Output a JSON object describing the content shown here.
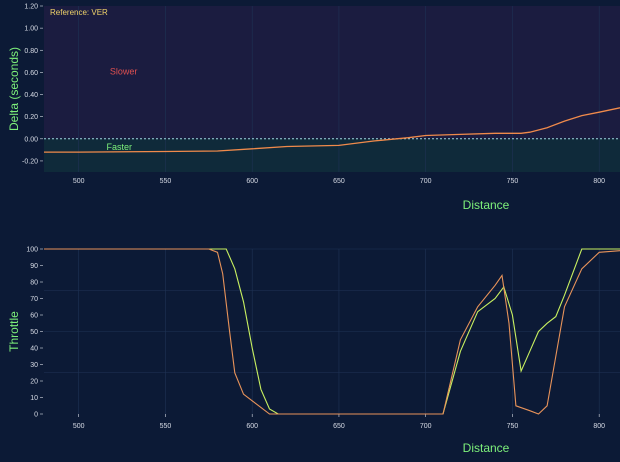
{
  "colors": {
    "background": "#0c1a36",
    "delta_slower_bg": "#1b1c40",
    "delta_faster_bg": "#0f2a3a",
    "grid": "#1f3355",
    "text": "#d8dce6",
    "accent_green": "#7df07a",
    "slower_red": "#e05050",
    "reference_yellow": "#f0d36a",
    "delta_line": "#f08a4b",
    "zero_line": "#9fd8e0",
    "throttle_ref": "#c8f060",
    "throttle_cmp": "#e8935a"
  },
  "chart_data": [
    {
      "type": "line",
      "title": "",
      "reference_label": "Reference: VER",
      "xlabel": "Distance",
      "ylabel": "Delta (seconds)",
      "xlim": [
        480,
        812
      ],
      "ylim": [
        -0.3,
        1.2
      ],
      "x_ticks": [
        500,
        550,
        600,
        650,
        700,
        750,
        800
      ],
      "y_ticks": [
        1.2,
        1.0,
        0.8,
        0.6,
        0.4,
        0.2,
        0.0,
        -0.2
      ],
      "y_tick_labels": [
        "1.20",
        "1.00",
        "0.80",
        "0.60",
        "0.40",
        "0.20",
        "0.00",
        "-0.20"
      ],
      "zero_line": true,
      "annotations": [
        {
          "text": "Slower",
          "x": 518,
          "y": 0.58
        },
        {
          "text": "Faster",
          "x": 516,
          "y": -0.1
        }
      ],
      "series": [
        {
          "x": [
            480,
            500,
            550,
            580,
            600,
            620,
            650,
            670,
            690,
            700,
            720,
            740,
            755,
            760,
            770,
            780,
            790,
            800,
            812
          ],
          "y": [
            -0.12,
            -0.12,
            -0.115,
            -0.11,
            -0.09,
            -0.07,
            -0.06,
            -0.02,
            0.01,
            0.03,
            0.04,
            0.05,
            0.05,
            0.06,
            0.1,
            0.16,
            0.21,
            0.24,
            0.28
          ]
        }
      ]
    },
    {
      "type": "line",
      "title": "",
      "xlabel": "Distance",
      "ylabel": "Throttle",
      "xlim": [
        480,
        812
      ],
      "ylim": [
        0,
        100
      ],
      "x_ticks": [
        500,
        550,
        600,
        650,
        700,
        750,
        800
      ],
      "y_ticks": [
        100,
        90,
        80,
        70,
        60,
        50,
        40,
        30,
        20,
        10,
        0
      ],
      "series": [
        {
          "x": [
            480,
            500,
            550,
            575,
            585,
            590,
            595,
            600,
            605,
            610,
            615,
            650,
            700,
            710,
            720,
            730,
            740,
            745,
            750,
            755,
            760,
            765,
            770,
            775,
            780,
            790,
            800,
            812
          ],
          "y": [
            100,
            100,
            100,
            100,
            100,
            88,
            68,
            40,
            15,
            3,
            0,
            0,
            0,
            0,
            38,
            62,
            70,
            77,
            60,
            26,
            38,
            50,
            55,
            59,
            72,
            100,
            100,
            100
          ]
        },
        {
          "x": [
            480,
            500,
            550,
            575,
            580,
            583,
            587,
            590,
            595,
            600,
            605,
            610,
            650,
            700,
            710,
            720,
            730,
            740,
            744,
            748,
            752,
            760,
            765,
            770,
            775,
            780,
            790,
            800,
            812
          ],
          "y": [
            100,
            100,
            100,
            100,
            98,
            85,
            50,
            25,
            12,
            8,
            4,
            0,
            0,
            0,
            0,
            45,
            65,
            78,
            84,
            55,
            5,
            2,
            0,
            5,
            35,
            65,
            88,
            98,
            99
          ]
        }
      ]
    }
  ]
}
